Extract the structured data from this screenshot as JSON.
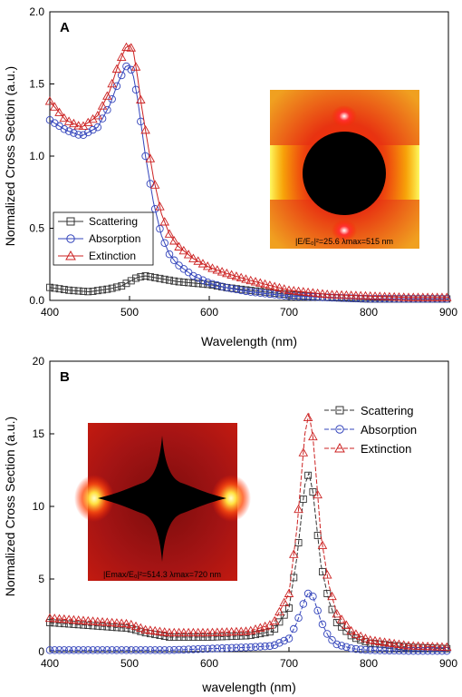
{
  "chart_data": [
    {
      "type": "scatter",
      "panel_label": "A",
      "xlabel": "Wavelength (nm)",
      "ylabel": "Normalized Cross Section (a.u.)",
      "xlim": [
        400,
        900
      ],
      "ylim": [
        0,
        2.0
      ],
      "xticks": [
        "400",
        "500",
        "600",
        "700",
        "800",
        "900"
      ],
      "yticks": [
        "0.0",
        "0.5",
        "1.0",
        "1.5",
        "2.0"
      ],
      "legend_position": "lower-left",
      "series": [
        {
          "name": "Scattering",
          "marker": "square",
          "color": "#333333",
          "x": [
            400,
            425,
            450,
            475,
            490,
            500,
            510,
            520,
            530,
            540,
            560,
            580,
            600,
            620,
            650,
            700,
            750,
            800,
            850,
            900
          ],
          "y": [
            0.09,
            0.07,
            0.06,
            0.08,
            0.1,
            0.13,
            0.16,
            0.17,
            0.16,
            0.15,
            0.13,
            0.12,
            0.11,
            0.09,
            0.07,
            0.04,
            0.02,
            0.01,
            0.01,
            0.01
          ]
        },
        {
          "name": "Absorption",
          "marker": "circle",
          "color": "#3344bb",
          "x": [
            400,
            420,
            440,
            460,
            475,
            485,
            495,
            500,
            505,
            510,
            515,
            520,
            530,
            540,
            550,
            560,
            580,
            600,
            620,
            650,
            700,
            750,
            800,
            850,
            900
          ],
          "y": [
            1.25,
            1.18,
            1.14,
            1.2,
            1.35,
            1.5,
            1.62,
            1.63,
            1.55,
            1.4,
            1.2,
            1.0,
            0.68,
            0.45,
            0.32,
            0.25,
            0.17,
            0.12,
            0.09,
            0.06,
            0.03,
            0.02,
            0.01,
            0.01,
            0.01
          ]
        },
        {
          "name": "Extinction",
          "marker": "triangle",
          "color": "#cc2222",
          "x": [
            400,
            420,
            440,
            460,
            475,
            485,
            495,
            500,
            505,
            510,
            515,
            520,
            530,
            540,
            550,
            560,
            580,
            600,
            620,
            650,
            700,
            750,
            800,
            850,
            900
          ],
          "y": [
            1.38,
            1.25,
            1.2,
            1.28,
            1.45,
            1.62,
            1.75,
            1.77,
            1.72,
            1.55,
            1.35,
            1.18,
            0.85,
            0.6,
            0.46,
            0.38,
            0.29,
            0.23,
            0.19,
            0.14,
            0.07,
            0.04,
            0.03,
            0.02,
            0.02
          ]
        }
      ],
      "inset": {
        "caption": "|E/E₀|²=25.6  λmax=515 nm",
        "shape": "sphere"
      }
    },
    {
      "type": "scatter",
      "panel_label": "B",
      "xlabel": "wavelength (nm)",
      "ylabel": "Normalized Cross Section (a.u.)",
      "xlim": [
        400,
        900
      ],
      "ylim": [
        0,
        20
      ],
      "xticks": [
        "400",
        "500",
        "600",
        "700",
        "800",
        "900"
      ],
      "yticks": [
        "0",
        "5",
        "10",
        "15",
        "20"
      ],
      "legend_position": "top-right",
      "series": [
        {
          "name": "Scattering",
          "marker": "square",
          "color": "#333333",
          "x": [
            400,
            450,
            500,
            520,
            550,
            600,
            650,
            680,
            700,
            710,
            720,
            725,
            730,
            735,
            740,
            750,
            760,
            780,
            800,
            850,
            900
          ],
          "y": [
            2.0,
            1.8,
            1.6,
            1.3,
            1.0,
            1.0,
            1.1,
            1.4,
            3.0,
            6.5,
            11.5,
            12.3,
            11.0,
            8.5,
            6.0,
            3.5,
            2.0,
            1.0,
            0.6,
            0.3,
            0.2
          ]
        },
        {
          "name": "Absorption",
          "marker": "circle",
          "color": "#3344bb",
          "x": [
            400,
            450,
            500,
            550,
            600,
            650,
            680,
            700,
            710,
            720,
            725,
            730,
            735,
            740,
            750,
            760,
            780,
            800,
            850,
            900
          ],
          "y": [
            0.1,
            0.1,
            0.1,
            0.1,
            0.2,
            0.3,
            0.4,
            0.9,
            2.0,
            3.6,
            4.1,
            3.8,
            3.0,
            2.1,
            1.0,
            0.5,
            0.2,
            0.1,
            0.05,
            0.05
          ]
        },
        {
          "name": "Extinction",
          "marker": "triangle",
          "color": "#cc2222",
          "x": [
            400,
            450,
            500,
            520,
            550,
            600,
            650,
            680,
            700,
            710,
            720,
            725,
            730,
            735,
            740,
            750,
            760,
            780,
            800,
            850,
            900
          ],
          "y": [
            2.3,
            2.1,
            1.9,
            1.5,
            1.3,
            1.3,
            1.4,
            1.9,
            4.0,
            8.5,
            15.0,
            16.4,
            14.8,
            11.5,
            8.0,
            4.6,
            2.6,
            1.3,
            0.8,
            0.4,
            0.3
          ]
        }
      ],
      "inset": {
        "caption": "|Emax/E₀|²=514.3  λmax=720 nm",
        "shape": "star"
      }
    }
  ]
}
